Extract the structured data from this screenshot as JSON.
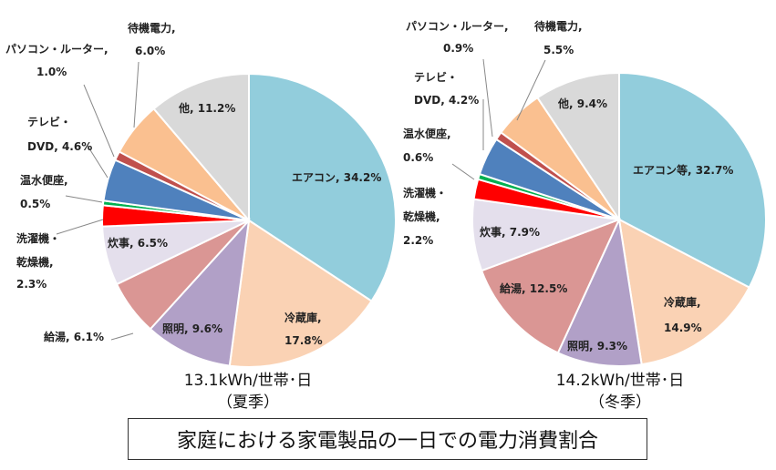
{
  "title": "家庭における家電製品の一日での電力消費割合",
  "chart_data": [
    {
      "type": "pie",
      "subtitle_line1": "13.1kWh/世帯･日",
      "subtitle_line2": "（夏季）",
      "slices": [
        {
          "label": "エアコン, 34.2%",
          "value": 34.2,
          "color": "#92CDDC"
        },
        {
          "label": "冷蔵庫, 17.8%",
          "value": 17.8,
          "color": "#FAD2B4"
        },
        {
          "label": "照明, 9.6%",
          "value": 9.6,
          "color": "#B1A0C7"
        },
        {
          "label": "給湯, 6.1%",
          "value": 6.1,
          "color": "#DA9694"
        },
        {
          "label": "炊事, 6.5%",
          "value": 6.5,
          "color": "#E4DFEC"
        },
        {
          "label": "洗濯機・乾燥機, 2.3%",
          "value": 2.3,
          "color": "#FF0000"
        },
        {
          "label": "温水便座, 0.5%",
          "value": 0.5,
          "color": "#00B050"
        },
        {
          "label": "テレビ・DVD, 4.6%",
          "value": 4.6,
          "color": "#4F81BD"
        },
        {
          "label": "パソコン・ルーター, 1.0%",
          "value": 1.0,
          "color": "#C0504D"
        },
        {
          "label": "待機電力, 6.0%",
          "value": 6.0,
          "color": "#FAC090"
        },
        {
          "label": "他, 11.2%",
          "value": 11.2,
          "color": "#D9D9D9"
        }
      ]
    },
    {
      "type": "pie",
      "subtitle_line1": "14.2kWh/世帯･日",
      "subtitle_line2": "（冬季）",
      "slices": [
        {
          "label": "エアコン等, 32.7%",
          "value": 32.7,
          "color": "#92CDDC"
        },
        {
          "label": "冷蔵庫, 14.9%",
          "value": 14.9,
          "color": "#FAD2B4"
        },
        {
          "label": "照明, 9.3%",
          "value": 9.3,
          "color": "#B1A0C7"
        },
        {
          "label": "給湯, 12.5%",
          "value": 12.5,
          "color": "#DA9694"
        },
        {
          "label": "炊事, 7.9%",
          "value": 7.9,
          "color": "#E4DFEC"
        },
        {
          "label": "洗濯機・乾燥機, 2.2%",
          "value": 2.2,
          "color": "#FF0000"
        },
        {
          "label": "温水便座, 0.6%",
          "value": 0.6,
          "color": "#00B050"
        },
        {
          "label": "テレビ・DVD, 4.2%",
          "value": 4.2,
          "color": "#4F81BD"
        },
        {
          "label": "パソコン・ルーター, 0.9%",
          "value": 0.9,
          "color": "#C0504D"
        },
        {
          "label": "待機電力, 5.5%",
          "value": 5.5,
          "color": "#FAC090"
        },
        {
          "label": "他, 9.4%",
          "value": 9.4,
          "color": "#D9D9D9"
        }
      ]
    }
  ]
}
